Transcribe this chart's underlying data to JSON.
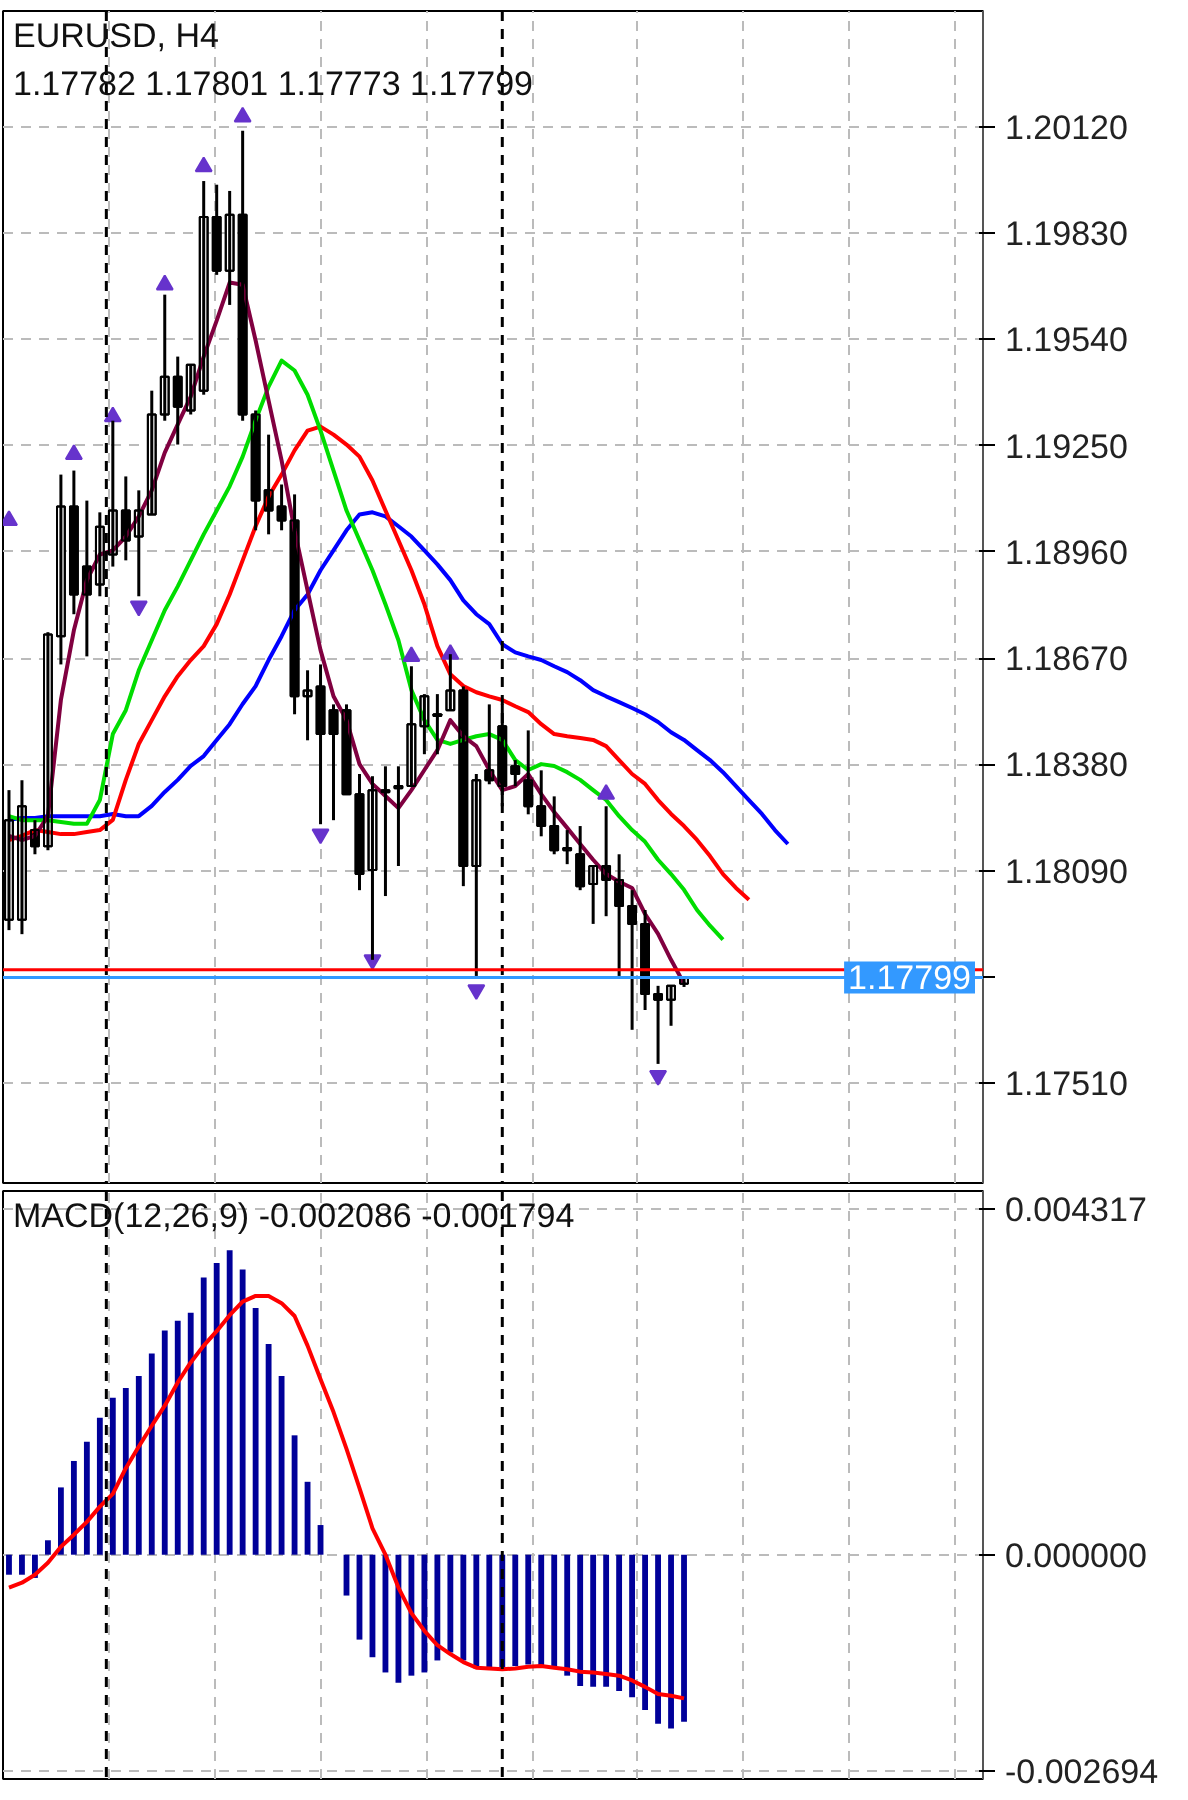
{
  "chart_data": [
    {
      "type": "candlestick",
      "title": "EURUSD, H4",
      "subtitle": "1.17782 1.17801 1.17773 1.17799",
      "categories": [
        null,
        null,
        null,
        null,
        null,
        null,
        null,
        null,
        null,
        null,
        null,
        null,
        null,
        null,
        null,
        null,
        null,
        null,
        null,
        null,
        null,
        null,
        null,
        null,
        null,
        null,
        null,
        null,
        null,
        null,
        null,
        null,
        null,
        null,
        null,
        null,
        null,
        null,
        null,
        null,
        null,
        null,
        null,
        null,
        null,
        null,
        null,
        null,
        null,
        null,
        null,
        null,
        null,
        null,
        null,
        null,
        null,
        null,
        null,
        null,
        null
      ],
      "ohlc": [
        [
          1.17956,
          1.1831,
          1.17928,
          1.18228
        ],
        [
          1.17956,
          1.18337,
          1.17917,
          1.18266
        ],
        [
          1.18201,
          1.18228,
          1.18135,
          1.18157
        ],
        [
          1.18157,
          1.18741,
          1.18146,
          1.18735
        ],
        [
          1.1873,
          1.19171,
          1.18653,
          1.19084
        ],
        [
          1.19084,
          1.19182,
          1.1879,
          1.18844
        ],
        [
          1.1892,
          1.191,
          1.18675,
          1.18844
        ],
        [
          1.18871,
          1.19068,
          1.18839,
          1.19029
        ],
        [
          1.18953,
          1.19318,
          1.1892,
          1.19073
        ],
        [
          1.19073,
          1.19166,
          1.18937,
          1.18991
        ],
        [
          1.19002,
          1.19128,
          1.18839,
          1.19073
        ],
        [
          1.19062,
          1.194,
          1.19062,
          1.19335
        ],
        [
          1.19335,
          1.19662,
          1.19318,
          1.19438
        ],
        [
          1.19438,
          1.19493,
          1.19253,
          1.19356
        ],
        [
          1.19346,
          1.19471,
          1.19335,
          1.19471
        ],
        [
          1.194,
          1.19972,
          1.19389,
          1.19874
        ],
        [
          1.19874,
          1.19962,
          1.19716,
          1.19727
        ],
        [
          1.19727,
          1.19945,
          1.19634,
          1.1988
        ],
        [
          1.1988,
          1.20109,
          1.19318,
          1.19335
        ],
        [
          1.19335,
          1.19346,
          1.19019,
          1.191
        ],
        [
          1.19128,
          1.1928,
          1.19008,
          1.19073
        ],
        [
          1.19084,
          1.19144,
          1.19019,
          1.19046
        ],
        [
          1.19046,
          1.19117,
          1.18517,
          1.18566
        ],
        [
          1.18566,
          1.18637,
          1.18446,
          1.18582
        ],
        [
          1.18593,
          1.18653,
          1.18217,
          1.18463
        ],
        [
          1.18528,
          1.18544,
          1.18228,
          1.18463
        ],
        [
          1.18528,
          1.18544,
          1.18299,
          1.18299
        ],
        [
          1.18299,
          1.18354,
          1.18037,
          1.18081
        ],
        [
          1.18092,
          1.18348,
          1.17847,
          1.1831
        ],
        [
          1.18304,
          1.18375,
          1.18021,
          1.1831
        ],
        [
          1.18315,
          1.18375,
          1.18103,
          1.18321
        ],
        [
          1.18321,
          1.18648,
          1.18321,
          1.1849
        ],
        [
          1.18484,
          1.18572,
          1.18408,
          1.18566
        ],
        [
          1.18512,
          1.18572,
          1.18408,
          1.18517
        ],
        [
          1.18528,
          1.18681,
          1.18528,
          1.18582
        ],
        [
          1.18582,
          1.18593,
          1.18048,
          1.18103
        ],
        [
          1.18103,
          1.18354,
          1.17803,
          1.18337
        ],
        [
          1.18364,
          1.18544,
          1.18326,
          1.18337
        ],
        [
          1.18484,
          1.18544,
          1.18266,
          1.18321
        ],
        [
          1.18375,
          1.18392,
          1.18321,
          1.18354
        ],
        [
          1.18337,
          1.18473,
          1.18244,
          1.18266
        ],
        [
          1.18266,
          1.18364,
          1.18184,
          1.18212
        ],
        [
          1.18212,
          1.18293,
          1.18135,
          1.18146
        ],
        [
          1.18146,
          1.18201,
          1.18108,
          1.18152
        ],
        [
          1.18135,
          1.18212,
          1.18037,
          1.18048
        ],
        [
          1.18054,
          1.18103,
          1.17945,
          1.18103
        ],
        [
          1.18103,
          1.18266,
          1.17966,
          1.18065
        ],
        [
          1.18065,
          1.18135,
          1.17803,
          1.17994
        ],
        [
          1.17994,
          1.18037,
          1.17656,
          1.17945
        ],
        [
          1.17945,
          1.17983,
          1.1771,
          1.17754
        ],
        [
          1.17754,
          1.17776,
          1.17563,
          1.17738
        ],
        [
          1.17738,
          1.17776,
          1.17667,
          1.17776
        ],
        [
          1.17782,
          1.17801,
          1.17773,
          1.17799
        ],
        null,
        null,
        null,
        null,
        null,
        null,
        null,
        null
      ],
      "series": [
        {
          "type": "line",
          "color": "#0000ff",
          "values": [
            1.18229,
            1.18234,
            1.18234,
            1.18239,
            1.18239,
            1.18239,
            1.18239,
            1.18239,
            1.18245,
            1.18239,
            1.18239,
            1.18267,
            1.18305,
            1.18338,
            1.18376,
            1.18403,
            1.18447,
            1.1849,
            1.18545,
            1.18594,
            1.18665,
            1.1873,
            1.18801,
            1.18844,
            1.1891,
            1.18964,
            1.19019,
            1.19062,
            1.19068,
            1.19057,
            1.1903,
            1.19002,
            1.18964,
            1.18926,
            1.18883,
            1.18828,
            1.1879,
            1.18763,
            1.18708,
            1.18686,
            1.18675,
            1.18665,
            1.18648,
            1.18632,
            1.1861,
            1.18583,
            1.18566,
            1.1855,
            1.18534,
            1.18517,
            1.18496,
            1.18468,
            1.18447,
            1.18419,
            1.18392,
            1.18359,
            1.18321,
            1.18283,
            1.18245,
            1.18201,
            1.18163
          ]
        },
        {
          "type": "line",
          "color": "#ff0000",
          "values": [
            1.18174,
            1.18185,
            1.18201,
            1.18196,
            1.1819,
            1.1819,
            1.18196,
            1.18201,
            1.18229,
            1.18338,
            1.18436,
            1.18501,
            1.18566,
            1.18621,
            1.18665,
            1.18703,
            1.18763,
            1.18844,
            1.18937,
            1.1903,
            1.19111,
            1.19171,
            1.19237,
            1.19291,
            1.19302,
            1.1928,
            1.19253,
            1.1922,
            1.19155,
            1.19073,
            1.18992,
            1.1891,
            1.18817,
            1.18703,
            1.18626,
            1.18594,
            1.18577,
            1.18566,
            1.18556,
            1.18539,
            1.18523,
            1.1849,
            1.18463,
            1.18457,
            1.18452,
            1.18447,
            1.1843,
            1.18392,
            1.18354,
            1.18327,
            1.18283,
            1.18245,
            1.18212,
            1.18174,
            1.1813,
            1.18081,
            1.18043,
            1.18011,
            null,
            null,
            null
          ]
        },
        {
          "type": "line",
          "color": "#00dd00",
          "values": [
            1.18239,
            1.18228,
            1.18228,
            1.18228,
            1.18223,
            1.18218,
            1.18218,
            1.18283,
            1.18463,
            1.18528,
            1.18637,
            1.18719,
            1.18801,
            1.18866,
            1.18937,
            1.19008,
            1.19073,
            1.19139,
            1.1922,
            1.19319,
            1.19411,
            1.19482,
            1.19455,
            1.19389,
            1.19291,
            1.19182,
            1.19073,
            1.18992,
            1.1891,
            1.18817,
            1.18719,
            1.18583,
            1.18501,
            1.18447,
            1.18436,
            1.18447,
            1.18457,
            1.18463,
            1.18447,
            1.18392,
            1.18365,
            1.18381,
            1.18376,
            1.18359,
            1.18338,
            1.1831,
            1.18283,
            1.18239,
            1.18201,
            1.18169,
            1.1812,
            1.18081,
            1.18038,
            1.17983,
            1.1794,
            1.17902,
            null,
            null,
            null,
            null,
            null
          ]
        },
        {
          "type": "line",
          "color": "#800040",
          "values": [
            1.18185,
            1.18174,
            1.18185,
            1.18239,
            1.18556,
            1.18746,
            1.18883,
            1.18953,
            1.18964,
            1.19002,
            1.19057,
            1.19128,
            1.19231,
            1.19308,
            1.19384,
            1.19493,
            1.19591,
            1.19695,
            1.19689,
            1.19537,
            1.19373,
            1.1921,
            1.19019,
            1.18855,
            1.18692,
            1.18566,
            1.18501,
            1.18381,
            1.18327,
            1.18294,
            1.18261,
            1.1831,
            1.18365,
            1.18419,
            1.18501,
            1.18457,
            1.1843,
            1.18365,
            1.1831,
            1.18321,
            1.18354,
            1.18299,
            1.1825,
            1.18207,
            1.18163,
            1.1812,
            1.18081,
            1.1806,
            1.18043,
            1.17972,
            1.17918,
            1.17847,
            1.17782,
            null,
            null,
            null,
            null,
            null,
            null,
            null,
            null
          ]
        },
        {
          "type": "scatter",
          "marker": "triangle",
          "color": "#6633cc",
          "values": [
            1.19046,
            null,
            null,
            null,
            null,
            1.19226,
            null,
            null,
            1.19329,
            null,
            null,
            null,
            1.19689,
            null,
            null,
            1.20011,
            null,
            null,
            1.20147,
            null,
            null,
            null,
            null,
            null,
            null,
            null,
            null,
            null,
            null,
            null,
            null,
            1.18675,
            null,
            null,
            1.18681,
            null,
            null,
            null,
            null,
            null,
            null,
            null,
            null,
            null,
            null,
            null,
            1.18299,
            null,
            null,
            null,
            null,
            null,
            null,
            null,
            null,
            null,
            null,
            null,
            null,
            null,
            null
          ]
        },
        {
          "type": "scatter",
          "marker": "triangle_down",
          "color": "#6633cc",
          "values": [
            null,
            null,
            null,
            null,
            null,
            null,
            null,
            null,
            null,
            null,
            1.18812,
            null,
            null,
            null,
            null,
            null,
            null,
            null,
            null,
            null,
            null,
            null,
            null,
            null,
            1.1819,
            null,
            null,
            null,
            1.17847,
            null,
            null,
            null,
            null,
            null,
            null,
            null,
            1.17765,
            null,
            null,
            null,
            null,
            null,
            null,
            null,
            null,
            null,
            null,
            null,
            null,
            null,
            1.17531,
            null,
            null,
            null,
            null,
            null,
            null,
            null,
            null,
            null,
            null
          ]
        }
      ],
      "ylim": [
        1.17238,
        1.20436
      ],
      "yticks": [
        {
          "value": 1.1751,
          "label": "1.17510"
        },
        {
          "value": 1.178,
          "label": null
        },
        {
          "value": 1.1809,
          "label": "1.18090"
        },
        {
          "value": 1.1838,
          "label": "1.18380"
        },
        {
          "value": 1.1867,
          "label": "1.18670"
        },
        {
          "value": 1.1896,
          "label": "1.18960"
        },
        {
          "value": 1.1925,
          "label": "1.19250"
        },
        {
          "value": 1.1954,
          "label": "1.19540"
        },
        {
          "value": 1.1983,
          "label": "1.19830"
        },
        {
          "value": 1.2012,
          "label": "1.20120"
        }
      ],
      "ref_lines": [
        {
          "axis": "y",
          "value": 1.1782,
          "color": "#ff0000"
        },
        {
          "axis": "y",
          "value": 1.17799,
          "label": "1.17799",
          "color": "#3399ff"
        }
      ],
      "grid": true
    },
    {
      "type": "bar",
      "title": "MACD(12,26,9) -0.002086 -0.001794",
      "categories": [
        null,
        null,
        null,
        null,
        null,
        null,
        null,
        null,
        null,
        null,
        null,
        null,
        null,
        null,
        null,
        null,
        null,
        null,
        null,
        null,
        null,
        null,
        null,
        null,
        null,
        null,
        null,
        null,
        null,
        null,
        null,
        null,
        null,
        null,
        null,
        null,
        null,
        null,
        null,
        null,
        null,
        null,
        null,
        null,
        null,
        null,
        null,
        null,
        null,
        null,
        null,
        null,
        null,
        null,
        null,
        null,
        null,
        null,
        null,
        null,
        null
      ],
      "series": [
        {
          "type": "bar",
          "color": "#000099",
          "values": [
            -0.00025,
            -0.00025,
            -0.00029,
            0.00018,
            0.00084,
            0.00117,
            0.00141,
            0.00171,
            0.00196,
            0.00208,
            0.00223,
            0.00251,
            0.0028,
            0.00292,
            0.00302,
            0.00346,
            0.00364,
            0.0038,
            0.00356,
            0.00308,
            0.00263,
            0.00223,
            0.00149,
            0.00091,
            0.00037,
            0.0,
            -0.00051,
            -0.00106,
            -0.00128,
            -0.00147,
            -0.0016,
            -0.00151,
            -0.00147,
            -0.00132,
            -0.00122,
            -0.00132,
            -0.00142,
            -0.00142,
            -0.00141,
            -0.00139,
            -0.00137,
            -0.00139,
            -0.00142,
            -0.00151,
            -0.00164,
            -0.00165,
            -0.00165,
            -0.0017,
            -0.00178,
            -0.00194,
            -0.00211,
            -0.00217,
            -0.002086,
            null,
            null,
            null,
            null,
            null,
            null,
            null,
            null
          ]
        },
        {
          "type": "line",
          "color": "#ff0000",
          "values": [
            -0.00041,
            -0.00035,
            -0.00025,
            -0.0001,
            0.0001,
            0.00025,
            0.00041,
            0.0006,
            0.00076,
            0.00108,
            0.00135,
            0.00161,
            0.00186,
            0.00215,
            0.0024,
            0.00261,
            0.00279,
            0.00299,
            0.00316,
            0.00323,
            0.00323,
            0.00314,
            0.00298,
            0.00261,
            0.00219,
            0.00178,
            0.00132,
            0.00083,
            0.00033,
            0.0,
            -0.00041,
            -0.00073,
            -0.00095,
            -0.00113,
            -0.00124,
            -0.00134,
            -0.00141,
            -0.00142,
            -0.00143,
            -0.00142,
            -0.0014,
            -0.00139,
            -0.00141,
            -0.00143,
            -0.00146,
            -0.00147,
            -0.00149,
            -0.00151,
            -0.00157,
            -0.00165,
            -0.00174,
            -0.00176,
            -0.001794,
            null,
            null,
            null,
            null,
            null,
            null,
            null,
            null
          ]
        }
      ],
      "ylim": [
        -0.0028,
        0.00454
      ],
      "yticks": [
        {
          "value": 0.004317,
          "label": "0.004317"
        },
        {
          "value": 0,
          "label": "0.000000"
        },
        {
          "value": -0.002694,
          "label": "-0.002694"
        }
      ],
      "grid": true
    }
  ]
}
